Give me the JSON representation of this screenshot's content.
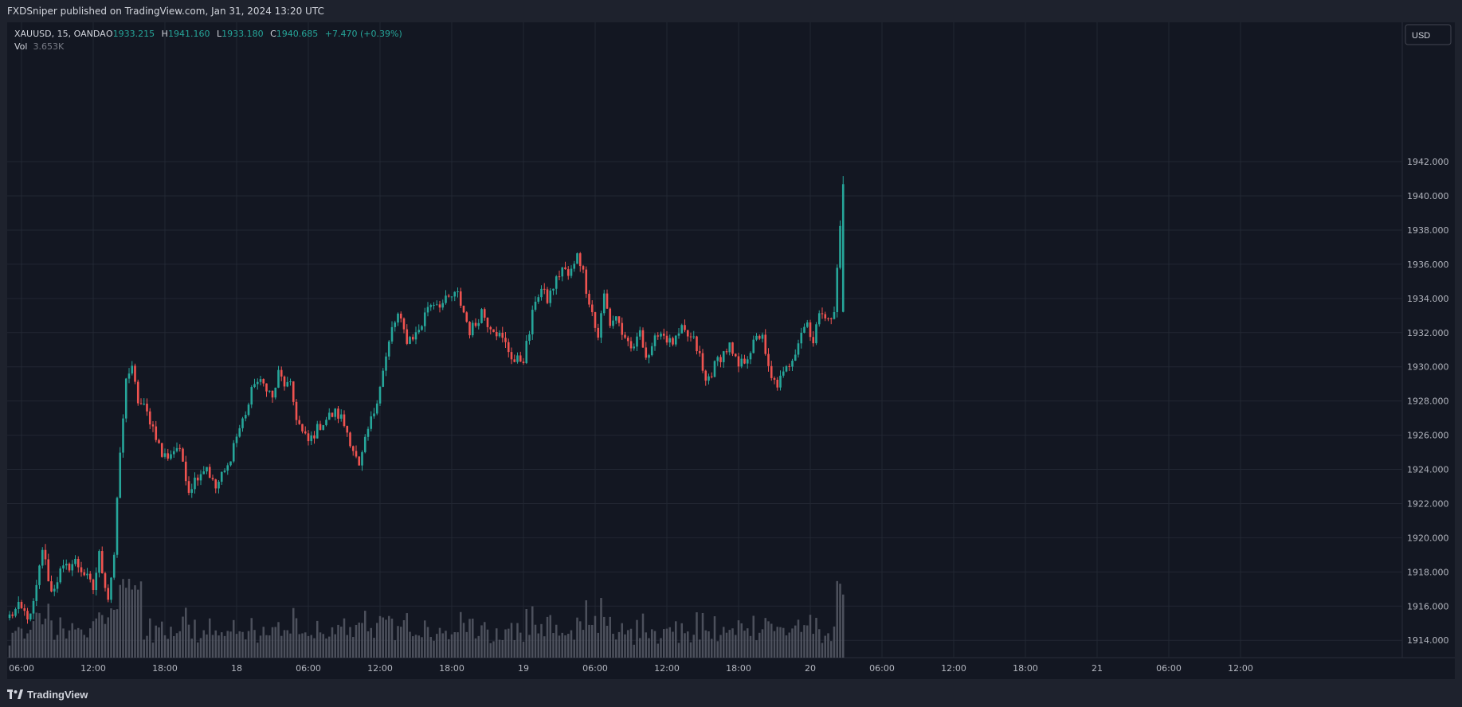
{
  "header": {
    "published_text": "FXDSniper published on TradingView.com, Jan 31, 2024 13:20 UTC"
  },
  "footer": {
    "brand": "TradingView",
    "logo_icon": "tradingview-logo-icon"
  },
  "legend": {
    "symbol": "XAUUSD, 15, OANDA",
    "open_label": "O",
    "open": "1933.215",
    "high_label": "H",
    "high": "1941.160",
    "low_label": "L",
    "low": "1933.180",
    "close_label": "C",
    "close": "1940.685",
    "change": "+7.470 (+0.39%)",
    "vol_label": "Vol",
    "vol": "3.653K"
  },
  "currency_button": "USD",
  "colors": {
    "background": "#131722",
    "frame": "#1e222d",
    "grid": "#222733",
    "up": "#26a69a",
    "down": "#ef5350",
    "text": "#d1d4dc",
    "axis_text": "#b2b5be",
    "volume": "#575b66"
  },
  "chart_data": {
    "type": "candlestick",
    "symbol": "XAUUSD",
    "interval": "15",
    "source": "OANDA",
    "ylim": [
      1912.5,
      1943.0
    ],
    "ytick_values": [
      1914,
      1916,
      1918,
      1920,
      1922,
      1924,
      1926,
      1928,
      1930,
      1932,
      1934,
      1936,
      1938,
      1940,
      1942
    ],
    "ytick_labels": [
      "1914.000",
      "1916.000",
      "1918.000",
      "1920.000",
      "1922.000",
      "1924.000",
      "1926.000",
      "1928.000",
      "1930.000",
      "1932.000",
      "1934.000",
      "1936.000",
      "1938.000",
      "1940.000",
      "1942.000"
    ],
    "xtick_labels": [
      "06:00",
      "12:00",
      "18:00",
      "18",
      "06:00",
      "12:00",
      "18:00",
      "19",
      "06:00",
      "12:00",
      "18:00",
      "20",
      "06:00",
      "12:00",
      "18:00",
      "21",
      "06:00",
      "12:00"
    ],
    "candles_per_6h": 24,
    "first_tick_index": 4,
    "candle_count": 280,
    "legend_placement": "top-left",
    "grid": true,
    "path": [
      [
        0,
        1915.4
      ],
      [
        3,
        1915.9
      ],
      [
        7,
        1915.3
      ],
      [
        9,
        1917.0
      ],
      [
        11,
        1919.4
      ],
      [
        14,
        1916.8
      ],
      [
        17,
        1918.0
      ],
      [
        22,
        1918.6
      ],
      [
        25,
        1917.9
      ],
      [
        28,
        1917.0
      ],
      [
        30,
        1919.0
      ],
      [
        32,
        1917.3
      ],
      [
        33,
        1916.5
      ],
      [
        35,
        1919.0
      ],
      [
        36,
        1922.0
      ],
      [
        37,
        1925.0
      ],
      [
        38,
        1926.8
      ],
      [
        39,
        1929.5
      ],
      [
        41,
        1929.8
      ],
      [
        43,
        1928.0
      ],
      [
        45,
        1927.6
      ],
      [
        47,
        1926.9
      ],
      [
        49,
        1926.0
      ],
      [
        51,
        1924.8
      ],
      [
        53,
        1924.8
      ],
      [
        56,
        1925.3
      ],
      [
        58,
        1924.5
      ],
      [
        60,
        1922.8
      ],
      [
        63,
        1923.7
      ],
      [
        66,
        1924.2
      ],
      [
        68,
        1923.2
      ],
      [
        69,
        1922.9
      ],
      [
        71,
        1923.6
      ],
      [
        73,
        1924.1
      ],
      [
        75,
        1925.5
      ],
      [
        77,
        1926.4
      ],
      [
        80,
        1927.8
      ],
      [
        82,
        1929.2
      ],
      [
        84,
        1929.0
      ],
      [
        86,
        1928.9
      ],
      [
        88,
        1928.1
      ],
      [
        90,
        1929.6
      ],
      [
        92,
        1929.0
      ],
      [
        94,
        1928.8
      ],
      [
        96,
        1927.1
      ],
      [
        98,
        1926.1
      ],
      [
        100,
        1925.6
      ],
      [
        102,
        1926.1
      ],
      [
        104,
        1926.6
      ],
      [
        107,
        1927.1
      ],
      [
        109,
        1927.3
      ],
      [
        111,
        1927.0
      ],
      [
        113,
        1926.2
      ],
      [
        115,
        1925.2
      ],
      [
        117,
        1924.0
      ],
      [
        118,
        1924.8
      ],
      [
        120,
        1926.3
      ],
      [
        122,
        1927.4
      ],
      [
        124,
        1929.0
      ],
      [
        126,
        1930.5
      ],
      [
        128,
        1932.2
      ],
      [
        130,
        1933.0
      ],
      [
        133,
        1931.6
      ],
      [
        136,
        1931.9
      ],
      [
        138,
        1932.5
      ],
      [
        140,
        1933.6
      ],
      [
        142,
        1933.8
      ],
      [
        145,
        1933.7
      ],
      [
        148,
        1934.1
      ],
      [
        150,
        1934.2
      ],
      [
        152,
        1933.2
      ],
      [
        154,
        1932.1
      ],
      [
        156,
        1932.5
      ],
      [
        158,
        1933.3
      ],
      [
        160,
        1932.6
      ],
      [
        162,
        1932.3
      ],
      [
        164,
        1931.8
      ],
      [
        166,
        1931.3
      ],
      [
        169,
        1930.3
      ],
      [
        172,
        1930.5
      ],
      [
        174,
        1932.0
      ],
      [
        176,
        1934.0
      ],
      [
        178,
        1934.5
      ],
      [
        180,
        1933.9
      ],
      [
        182,
        1934.7
      ],
      [
        185,
        1935.8
      ],
      [
        187,
        1935.3
      ],
      [
        189,
        1935.9
      ],
      [
        190,
        1936.8
      ],
      [
        192,
        1935.5
      ],
      [
        193,
        1934.6
      ],
      [
        195,
        1933.2
      ],
      [
        196,
        1932.3
      ],
      [
        197,
        1931.8
      ],
      [
        199,
        1934.2
      ],
      [
        201,
        1932.5
      ],
      [
        203,
        1933.0
      ],
      [
        205,
        1932.0
      ],
      [
        206,
        1931.4
      ],
      [
        208,
        1931.0
      ],
      [
        210,
        1931.5
      ],
      [
        211,
        1932.3
      ],
      [
        213,
        1930.6
      ],
      [
        215,
        1930.9
      ],
      [
        217,
        1932.1
      ],
      [
        219,
        1931.9
      ],
      [
        221,
        1931.4
      ],
      [
        223,
        1931.5
      ],
      [
        225,
        1932.1
      ],
      [
        227,
        1931.8
      ],
      [
        229,
        1931.5
      ],
      [
        231,
        1930.6
      ],
      [
        232,
        1929.7
      ],
      [
        233,
        1929.1
      ],
      [
        235,
        1929.7
      ],
      [
        237,
        1930.4
      ],
      [
        239,
        1930.8
      ],
      [
        241,
        1931.2
      ],
      [
        242,
        1930.6
      ],
      [
        244,
        1930.0
      ],
      [
        246,
        1930.4
      ],
      [
        248,
        1931.0
      ],
      [
        250,
        1931.6
      ],
      [
        252,
        1932.0
      ],
      [
        253,
        1930.5
      ],
      [
        255,
        1929.2
      ],
      [
        257,
        1929.0
      ],
      [
        259,
        1929.5
      ],
      [
        261,
        1930.2
      ],
      [
        263,
        1931.0
      ],
      [
        265,
        1932.1
      ],
      [
        267,
        1932.6
      ],
      [
        269,
        1931.5
      ],
      [
        270,
        1932.4
      ],
      [
        272,
        1933.3
      ],
      [
        274,
        1933.0
      ],
      [
        275,
        1932.6
      ],
      [
        276,
        1933.2
      ],
      [
        279,
        1940.685
      ]
    ],
    "path_note_omitted": true,
    "volume_max": 4.8,
    "volume_last": 3.653
  }
}
